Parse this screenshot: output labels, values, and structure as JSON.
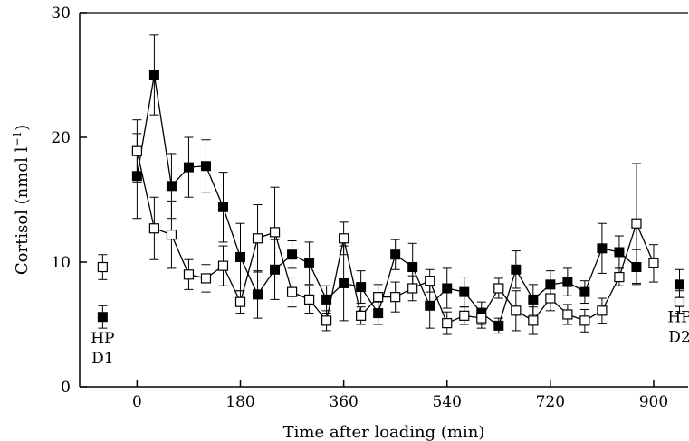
{
  "chart_data": {
    "type": "scatter",
    "title": "",
    "xlabel": "Time after loading (min)",
    "ylabel_main": "Cortisol (nmol l",
    "ylabel_sup": "−1",
    "ylabel_close": ")",
    "xlim": [
      -100,
      960
    ],
    "ylim": [
      0,
      30
    ],
    "xticks": [
      0,
      180,
      360,
      540,
      720,
      900
    ],
    "xtick_labels": [
      "0",
      "180",
      "360",
      "540",
      "720",
      "900"
    ],
    "yticks": [
      0,
      10,
      20,
      30
    ],
    "ytick_labels": [
      "0",
      "10",
      "20",
      "30"
    ],
    "grid": false,
    "legend": "none",
    "annotations": [
      {
        "lines": [
          "HP",
          "D1"
        ],
        "x": -60,
        "y": 4.8
      },
      {
        "lines": [
          "HP",
          "D2"
        ],
        "x": 945,
        "y": 6.5
      }
    ],
    "series": [
      {
        "marker": "filled-square",
        "color": "#000000",
        "connected": true,
        "x": [
          0,
          30,
          60,
          90,
          120,
          150,
          180,
          210,
          240,
          270,
          300,
          330,
          360,
          390,
          420,
          450,
          480,
          510,
          540,
          570,
          600,
          630,
          660,
          690,
          720,
          750,
          780,
          810,
          840,
          870
        ],
        "y": [
          16.9,
          25.0,
          16.1,
          17.6,
          17.7,
          14.4,
          10.4,
          7.4,
          9.4,
          10.6,
          9.9,
          7.0,
          8.3,
          8.0,
          5.9,
          10.6,
          9.6,
          6.5,
          7.9,
          7.6,
          5.9,
          4.9,
          9.4,
          7.0,
          8.2,
          8.4,
          7.6,
          11.1,
          10.8,
          9.6
        ],
        "err": [
          3.4,
          3.2,
          2.6,
          2.4,
          2.1,
          2.8,
          2.7,
          1.9,
          2.4,
          1.1,
          1.7,
          1.1,
          3.0,
          1.3,
          0.9,
          1.2,
          1.9,
          1.8,
          1.6,
          1.2,
          0.9,
          0.6,
          1.5,
          1.2,
          1.1,
          1.1,
          0.9,
          2.0,
          1.3,
          1.4
        ]
      },
      {
        "marker": "filled-square",
        "color": "#000000",
        "connected": false,
        "x": [
          -60,
          945
        ],
        "y": [
          5.6,
          8.2
        ],
        "err": [
          0.9,
          1.2
        ]
      },
      {
        "marker": "open-square",
        "color": "#000000",
        "connected": true,
        "x": [
          0,
          30,
          60,
          90,
          120,
          150,
          180,
          210,
          240,
          270,
          300,
          330,
          360,
          390,
          420,
          450,
          480,
          510,
          540,
          570,
          600,
          630,
          660,
          690,
          720,
          750,
          780,
          810,
          840,
          870,
          900
        ],
        "y": [
          18.9,
          12.7,
          12.2,
          9.0,
          8.7,
          9.7,
          6.8,
          11.9,
          12.4,
          7.6,
          7.0,
          5.3,
          11.9,
          5.7,
          7.2,
          7.2,
          7.9,
          8.5,
          5.1,
          5.7,
          5.5,
          7.9,
          6.1,
          5.3,
          7.1,
          5.8,
          5.3,
          6.1,
          8.8,
          13.1,
          9.9
        ],
        "err": [
          2.5,
          2.5,
          2.7,
          1.2,
          1.1,
          1.6,
          0.9,
          2.7,
          3.6,
          1.2,
          1.1,
          0.8,
          1.3,
          0.7,
          1.0,
          1.2,
          1.0,
          0.9,
          0.9,
          0.7,
          0.8,
          0.8,
          1.6,
          1.1,
          1.0,
          0.8,
          0.9,
          1.0,
          0.7,
          4.8,
          1.5
        ]
      },
      {
        "marker": "open-square",
        "color": "#000000",
        "connected": false,
        "x": [
          -60,
          945
        ],
        "y": [
          9.6,
          6.8
        ],
        "err": [
          1.0,
          0.9
        ]
      }
    ]
  }
}
